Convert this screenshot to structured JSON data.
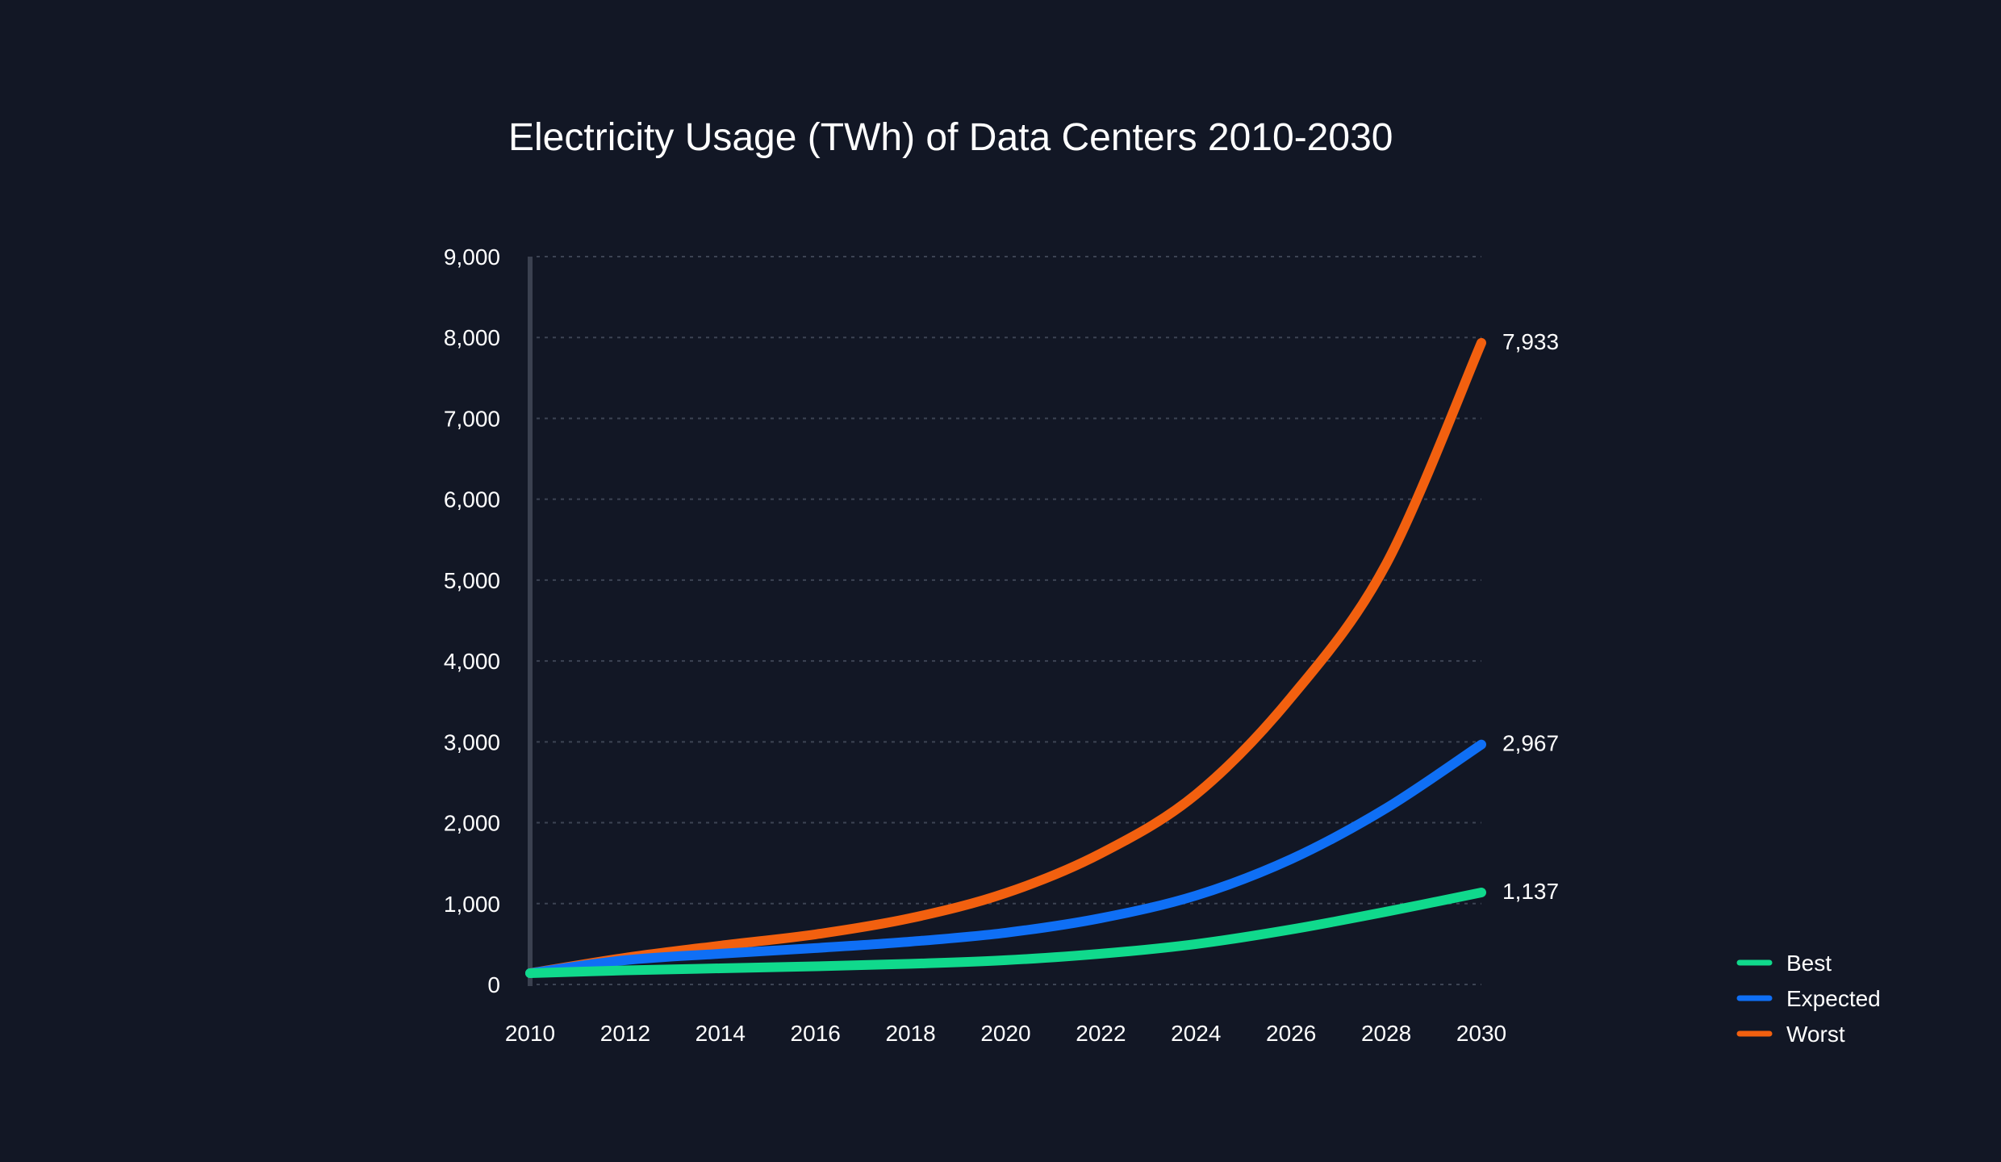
{
  "chart_data": {
    "type": "line",
    "title": "Electricity Usage (TWh) of Data Centers 2010-2030",
    "xlabel": "",
    "ylabel": "",
    "x": [
      2010,
      2012,
      2014,
      2016,
      2018,
      2020,
      2022,
      2024,
      2026,
      2028,
      2030
    ],
    "x_tick_labels": [
      "2010",
      "2012",
      "2014",
      "2016",
      "2018",
      "2020",
      "2022",
      "2024",
      "2026",
      "2028",
      "2030"
    ],
    "ylim": [
      0,
      9000
    ],
    "y_ticks": [
      0,
      1000,
      2000,
      3000,
      4000,
      5000,
      6000,
      7000,
      8000,
      9000
    ],
    "y_tick_labels": [
      "0",
      "1,000",
      "2,000",
      "3,000",
      "4,000",
      "5,000",
      "6,000",
      "7,000",
      "8,000",
      "9,000"
    ],
    "grid": true,
    "legend_position": "bottom-right",
    "series": [
      {
        "name": "Best",
        "color": "#10d98c",
        "values": [
          140,
          175,
          200,
          225,
          255,
          300,
          380,
          500,
          680,
          900,
          1137
        ],
        "end_label": "1,137"
      },
      {
        "name": "Expected",
        "color": "#0f6ff5",
        "values": [
          140,
          300,
          380,
          450,
          530,
          640,
          820,
          1100,
          1550,
          2180,
          2967
        ],
        "end_label": "2,967"
      },
      {
        "name": "Worst",
        "color": "#f2600f",
        "values": [
          140,
          330,
          480,
          620,
          820,
          1130,
          1620,
          2350,
          3550,
          5200,
          7933
        ],
        "end_label": "7,933"
      }
    ]
  }
}
